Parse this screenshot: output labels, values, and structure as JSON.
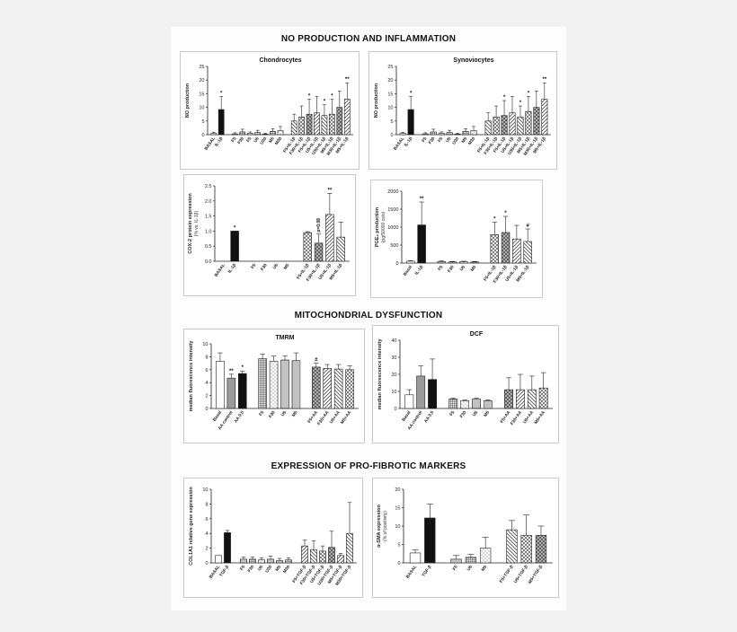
{
  "sections": [
    {
      "title": "NO PRODUCTION AND INFLAMMATION",
      "top": 38
    },
    {
      "title": "MITOCHONDRIAL DYSFUNCTION",
      "top": 346
    },
    {
      "title": "EXPRESSION OF PRO-FIBROTIC MARKERS",
      "top": 514
    }
  ],
  "chart_data": [
    {
      "id": "chondrocytes",
      "type": "bar",
      "title": "Chondrocytes",
      "ylabel": "NO production",
      "ylim": [
        0,
        25
      ],
      "yticks": [
        0,
        5,
        10,
        15,
        20,
        25
      ],
      "categories": [
        "BASAL",
        "IL-1β",
        "F5",
        "F30",
        "F5",
        "U5",
        "U30",
        "M5",
        "M30",
        "F5+IL-1β",
        "F30+IL-1β",
        "F5+IL-1β",
        "U5+IL-1β",
        "U30+IL-1β",
        "M5+IL-1β",
        "M30+IL-1β",
        "M5+IL-1β"
      ],
      "values": [
        0.5,
        9.2,
        0.3,
        1.0,
        0.5,
        0.8,
        0.2,
        1.2,
        1.5,
        5.0,
        6.5,
        7.5,
        8.0,
        7.0,
        7.5,
        10.0,
        13.0
      ],
      "errors": [
        0.4,
        4.8,
        0.4,
        1.0,
        0.5,
        0.8,
        0.3,
        1.0,
        1.5,
        2.5,
        4.0,
        5.5,
        6.0,
        4.0,
        5.5,
        6.0,
        6.0
      ],
      "annotations": [
        "",
        "*",
        "",
        "",
        "",
        "",
        "",
        "",
        "",
        "",
        "",
        "*",
        "",
        "*",
        "*",
        "",
        "**"
      ]
    },
    {
      "id": "synoviocytes",
      "type": "bar",
      "title": "Synoviocytes",
      "ylabel": "NO production",
      "ylim": [
        0,
        25
      ],
      "yticks": [
        0,
        5,
        10,
        15,
        20,
        25
      ],
      "categories": [
        "BASAL",
        "IL-1β",
        "F5",
        "F30",
        "F5",
        "U5",
        "U30",
        "M5",
        "M30",
        "F5+IL-1β",
        "F30+IL-1β",
        "F5+IL-1β",
        "U5+IL-1β",
        "U30+IL-1β",
        "M5+IL-1β",
        "M30+IL-1β",
        "M5+IL-1β"
      ],
      "values": [
        0.5,
        9.2,
        0.3,
        1.0,
        0.5,
        0.8,
        0.2,
        1.2,
        1.5,
        5.0,
        6.5,
        7.0,
        8.0,
        6.5,
        8.5,
        10.0,
        13.0
      ],
      "errors": [
        0.4,
        4.8,
        0.4,
        1.0,
        0.5,
        0.8,
        0.3,
        1.0,
        1.5,
        3.0,
        4.0,
        5.5,
        6.0,
        4.0,
        5.5,
        6.0,
        6.0
      ],
      "annotations": [
        "",
        "*",
        "",
        "",
        "",
        "",
        "",
        "",
        "",
        "",
        "",
        "*",
        "",
        "*",
        "*",
        "",
        "**"
      ]
    },
    {
      "id": "cox2",
      "type": "bar",
      "title": "",
      "ylabel": "COX-2 protein expression",
      "ylabel2": "(% vs. IL-1β)",
      "ylim": [
        0,
        2.5
      ],
      "yticks": [
        0.0,
        0.5,
        1.0,
        1.5,
        2.0,
        2.5
      ],
      "yticklabels": [
        "0.0",
        "0.5",
        "1.0",
        "1.5",
        "2.0",
        "2.5"
      ],
      "categories": [
        "BASAL",
        "IL-1β",
        "F5",
        "F30",
        "U5",
        "M5",
        "F5+IL-1β",
        "F30+IL-1β",
        "U5+IL-1β",
        "M5+IL-1β"
      ],
      "values": [
        0,
        1.0,
        0,
        0,
        0,
        0,
        0.95,
        0.6,
        1.55,
        0.8
      ],
      "errors": [
        0,
        0,
        0,
        0,
        0,
        0,
        0.03,
        0.3,
        0.7,
        0.5
      ],
      "annotations": [
        "",
        "*",
        "",
        "",
        "",
        "",
        "",
        "p=0.08",
        "**",
        ""
      ]
    },
    {
      "id": "pge2",
      "type": "bar",
      "title": "",
      "ylabel": "PGE₂ production",
      "ylabel2": "(pg/50000 cels)",
      "ylim": [
        0,
        2000
      ],
      "yticks": [
        0,
        500,
        1000,
        1500,
        2000
      ],
      "categories": [
        "Basal",
        "IL-1β",
        "F5",
        "F30",
        "U5",
        "M5",
        "F5+IL-1β",
        "F30+IL-1β",
        "U5+IL-1β",
        "M5+IL-1β"
      ],
      "values": [
        50,
        1060,
        40,
        30,
        35,
        30,
        790,
        850,
        670,
        600
      ],
      "errors": [
        20,
        640,
        20,
        15,
        15,
        15,
        350,
        450,
        380,
        350
      ],
      "annotations": [
        "",
        "**",
        "",
        "",
        "",
        "",
        "*",
        "*",
        "",
        "#"
      ]
    },
    {
      "id": "tmrm",
      "type": "bar",
      "title": "TMRM",
      "ylabel": "median fluorescence intensity",
      "ylim": [
        0,
        10
      ],
      "yticks": [
        0,
        2,
        4,
        6,
        8,
        10
      ],
      "categories": [
        "Basal",
        "AA control",
        "AA 0.5",
        "F5",
        "F30",
        "U5",
        "M5",
        "F5+AA",
        "F30+AA",
        "U5+AA",
        "M5+AA"
      ],
      "values": [
        7.3,
        4.7,
        5.4,
        7.7,
        7.3,
        7.5,
        7.4,
        6.4,
        6.2,
        6.1,
        6.0
      ],
      "errors": [
        1.3,
        0.6,
        0.4,
        0.7,
        0.8,
        0.6,
        1.2,
        0.6,
        0.6,
        0.7,
        0.6
      ],
      "annotations": [
        "",
        "**",
        "*",
        "",
        "",
        "",
        "",
        "#",
        "",
        "",
        ""
      ]
    },
    {
      "id": "dcf",
      "type": "bar",
      "title": "DCF",
      "ylabel": "median fluorescence intensity",
      "ylim": [
        0,
        40
      ],
      "yticks": [
        0,
        10,
        20,
        30,
        40
      ],
      "categories": [
        "Basal",
        "AA control",
        "AA 0.5",
        "F5",
        "F30",
        "U5",
        "M5",
        "F5+AA",
        "F30+AA",
        "U5+AA",
        "M5+AA"
      ],
      "values": [
        8,
        19,
        17,
        5.5,
        4.5,
        5.5,
        4.5,
        11,
        11,
        11,
        12
      ],
      "errors": [
        3,
        6,
        12,
        0.5,
        0.5,
        0.5,
        0.5,
        7,
        9,
        8,
        9
      ],
      "annotations": [
        "",
        "",
        "",
        "",
        "",
        "",
        "",
        "",
        "",
        "",
        ""
      ]
    },
    {
      "id": "col1a1",
      "type": "bar",
      "title": "",
      "ylabel": "COL1A1 relative gene expression",
      "ylim": [
        0,
        10
      ],
      "yticks": [
        0,
        2,
        4,
        6,
        8,
        10
      ],
      "categories": [
        "BASAL",
        "TGF-β",
        "F5",
        "F30",
        "U5",
        "U30",
        "M5",
        "M30",
        "F5+TGF-β",
        "F30+TGF-β",
        "U5+TGF-β",
        "U30+TGF-β",
        "M5+TGF-β",
        "M30+TGF-β"
      ],
      "values": [
        1.0,
        4.1,
        0.5,
        0.5,
        0.4,
        0.5,
        0.3,
        0.4,
        2.3,
        1.8,
        1.6,
        2.1,
        1.0,
        4.0
      ],
      "errors": [
        0,
        0.3,
        0.3,
        0.3,
        0.3,
        0.4,
        0.3,
        0.3,
        0.8,
        1.2,
        0.7,
        2.2,
        0.3,
        4.2
      ],
      "annotations": [
        "",
        "",
        "",
        "",
        "",
        "",
        "",
        "",
        "",
        "",
        "",
        "",
        "",
        ""
      ]
    },
    {
      "id": "asma",
      "type": "bar",
      "title": "",
      "ylabel": "α-SMA expression",
      "ylabel2": "(% of positivity)",
      "ylim": [
        0,
        20
      ],
      "yticks": [
        0,
        5,
        10,
        15,
        20
      ],
      "categories": [
        "BASAL",
        "TGF-β",
        "F5",
        "U5",
        "M5",
        "F5+TGF-β",
        "U5+TGF-β",
        "M5+TGF-β"
      ],
      "values": [
        2.7,
        12.2,
        1.0,
        1.5,
        4.0,
        9.0,
        7.5,
        7.5
      ],
      "errors": [
        0.8,
        3.8,
        1.0,
        0.8,
        3.0,
        2.5,
        5.5,
        2.5
      ],
      "annotations": [
        "",
        "",
        "",
        "",
        "",
        "",
        "",
        ""
      ]
    }
  ]
}
